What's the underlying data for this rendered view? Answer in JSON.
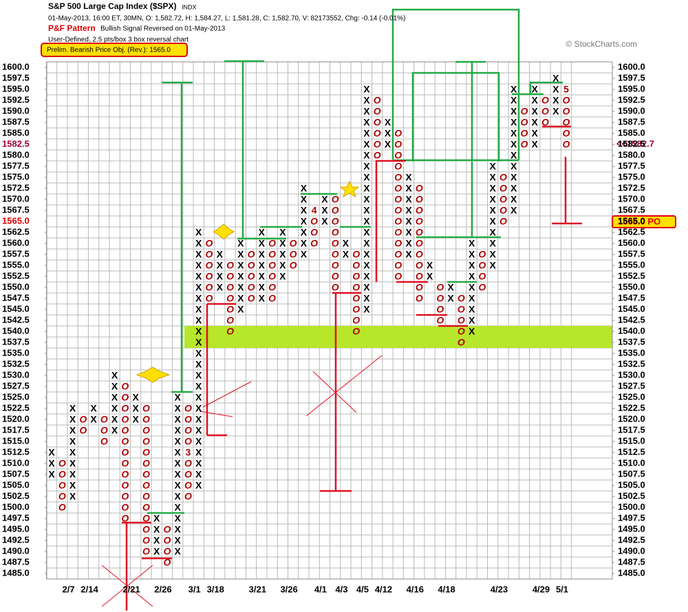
{
  "chart_data": {
    "type": "point_and_figure",
    "title": "S&P 500 Large Cap Index ($SPX)",
    "exchange": "INDX",
    "quote": "01-May-2013, 16:00 ET, 30MN, O: 1,582.72, H: 1,584.27, L: 1,581.28, C: 1,582.70, V: 82173552, Chg: -0.14 (-0.01%)",
    "pattern_label": "P&F Pattern",
    "pattern": "Bullish Signal Reversed on 01-May-2013",
    "settings_text": "User-Defined, 2.5 pts/box 3 box reversal chart",
    "price_objective_text": "Prelim. Bearish Price Obj. (Rev.): 1565.0",
    "copyright": "© StockCharts.com",
    "last_price_label": "<<1582.7",
    "po_label": "1565.0 PO",
    "x_color": "#000000",
    "o_color": "#b00000",
    "ylim": [
      1483.75,
      1601.25
    ],
    "yticks": [
      {
        "value": 1485,
        "label": "1485.0"
      },
      1487.5,
      {
        "value": 1490,
        "label": "1490.0"
      },
      1492.5,
      {
        "value": 1495,
        "label": "1495.0"
      },
      1497.5,
      {
        "value": 1500,
        "label": "1500.0"
      },
      1502.5,
      {
        "value": 1505,
        "label": "1505.0"
      },
      1507.5,
      {
        "value": 1510,
        "label": "1510.0"
      },
      1512.5,
      {
        "value": 1515,
        "label": "1515.0"
      },
      1517.5,
      {
        "value": 1520,
        "label": "1520.0"
      },
      1522.5,
      {
        "value": 1525,
        "label": "1525.0"
      },
      1527.5,
      {
        "value": 1530,
        "label": "1530.0"
      },
      1532.5,
      {
        "value": 1535,
        "label": "1535.0"
      },
      1537.5,
      {
        "value": 1540,
        "label": "1540.0"
      },
      1542.5,
      {
        "value": 1545,
        "label": "1545.0"
      },
      1547.5,
      {
        "value": 1550,
        "label": "1550.0"
      },
      1552.5,
      {
        "value": 1555,
        "label": "1555.0"
      },
      1557.5,
      {
        "value": 1560,
        "label": "1560.0"
      },
      1562.5,
      {
        "value": 1565,
        "label": "1565.0",
        "color": "#e00000"
      },
      1567.5,
      {
        "value": 1570,
        "label": "1570.0"
      },
      1572.5,
      {
        "value": 1575,
        "label": "1575.0"
      },
      1577.5,
      {
        "value": 1580,
        "label": "1580.0"
      },
      {
        "value": 1582.5,
        "label": "1582.5",
        "color": "#a0003c"
      },
      {
        "value": 1585,
        "label": "1585.0"
      },
      1587.5,
      {
        "value": 1590,
        "label": "1590.0"
      },
      1592.5,
      {
        "value": 1595,
        "label": "1595.0"
      },
      1597.5,
      {
        "value": 1600,
        "label": "1600.0"
      }
    ],
    "columns": [
      {
        "type": "X",
        "low": 1507.5,
        "high": 1512.5
      },
      {
        "type": "O",
        "low": 1500,
        "high": 1510
      },
      {
        "type": "X",
        "low": 1502.5,
        "high": 1522.5
      },
      {
        "type": "O",
        "low": 1517.5,
        "high": 1520
      },
      {
        "type": "X",
        "low": 1520,
        "high": 1522.5
      },
      {
        "type": "O",
        "low": 1515,
        "high": 1520
      },
      {
        "type": "X",
        "low": 1517.5,
        "high": 1530
      },
      {
        "type": "O",
        "low": 1497.5,
        "high": 1527.5
      },
      {
        "type": "X",
        "low": 1520,
        "high": 1525
      },
      {
        "type": "O",
        "low": 1490,
        "high": 1522.5
      },
      {
        "type": "X",
        "low": 1490,
        "high": 1497.5
      },
      {
        "type": "O",
        "low": 1487.5,
        "high": 1495
      },
      {
        "type": "X",
        "low": 1490,
        "high": 1525
      },
      {
        "type": "O",
        "low": 1502.5,
        "high": 1522.5,
        "marker": 3,
        "marker_price": 1512.5
      },
      {
        "type": "X",
        "low": 1505,
        "high": 1562.5
      },
      {
        "type": "O",
        "low": 1547.5,
        "high": 1560
      },
      {
        "type": "X",
        "low": 1550,
        "high": 1557.5
      },
      {
        "type": "O",
        "low": 1540,
        "high": 1555
      },
      {
        "type": "X",
        "low": 1545,
        "high": 1560
      },
      {
        "type": "O",
        "low": 1547.5,
        "high": 1557.5
      },
      {
        "type": "X",
        "low": 1547.5,
        "high": 1562.5
      },
      {
        "type": "O",
        "low": 1547.5,
        "high": 1560
      },
      {
        "type": "X",
        "low": 1552.5,
        "high": 1562.5
      },
      {
        "type": "O",
        "low": 1555,
        "high": 1560
      },
      {
        "type": "X",
        "low": 1557.5,
        "high": 1572.5
      },
      {
        "type": "O",
        "low": 1560,
        "high": 1567.5,
        "marker": 4,
        "marker_price": 1567.5
      },
      {
        "type": "X",
        "low": 1565,
        "high": 1570
      },
      {
        "type": "O",
        "low": 1550,
        "high": 1570
      },
      {
        "type": "X",
        "low": 1557.5,
        "high": 1560
      },
      {
        "type": "O",
        "low": 1540,
        "high": 1557.5
      },
      {
        "type": "X",
        "low": 1545,
        "high": 1595
      },
      {
        "type": "O",
        "low": 1580,
        "high": 1592.5
      },
      {
        "type": "X",
        "low": 1582.5,
        "high": 1587.5
      },
      {
        "type": "O",
        "low": 1552.5,
        "high": 1585
      },
      {
        "type": "X",
        "low": 1557.5,
        "high": 1575
      },
      {
        "type": "O",
        "low": 1547.5,
        "high": 1572.5
      },
      {
        "type": "X",
        "low": 1552.5,
        "high": 1555
      },
      {
        "type": "O",
        "low": 1542.5,
        "high": 1550
      },
      {
        "type": "X",
        "low": 1547.5,
        "high": 1550
      },
      {
        "type": "O",
        "low": 1537.5,
        "high": 1547.5
      },
      {
        "type": "X",
        "low": 1540,
        "high": 1560
      },
      {
        "type": "O",
        "low": 1550,
        "high": 1557.5
      },
      {
        "type": "X",
        "low": 1555,
        "high": 1577.5
      },
      {
        "type": "O",
        "low": 1565,
        "high": 1575
      },
      {
        "type": "X",
        "low": 1567.5,
        "high": 1595
      },
      {
        "type": "O",
        "low": 1582.5,
        "high": 1590
      },
      {
        "type": "X",
        "low": 1582.5,
        "high": 1595
      },
      {
        "type": "O",
        "low": 1587.5,
        "high": 1592.5
      },
      {
        "type": "X",
        "low": 1590,
        "high": 1597.5
      },
      {
        "type": "O",
        "low": 1582.5,
        "high": 1595,
        "marker": 5,
        "marker_price": 1595
      }
    ],
    "dates": [
      {
        "label": "2/7",
        "column": 2
      },
      {
        "label": "2/14",
        "column": 4
      },
      {
        "label": "2/21",
        "column": 8
      },
      {
        "label": "2/26",
        "column": 11
      },
      {
        "label": "3/1",
        "column": 14
      },
      {
        "label": "3/18",
        "column": 16
      },
      {
        "label": "3/21",
        "column": 20
      },
      {
        "label": "3/26",
        "column": 23
      },
      {
        "label": "4/1",
        "column": 26
      },
      {
        "label": "4/3",
        "column": 28
      },
      {
        "label": "4/5",
        "column": 30
      },
      {
        "label": "4/12",
        "column": 32
      },
      {
        "label": "4/16",
        "column": 35
      },
      {
        "label": "4/18",
        "column": 38
      },
      {
        "label": "4/23",
        "column": 43
      },
      {
        "label": "4/29",
        "column": 47
      },
      {
        "label": "5/1",
        "column": 49
      }
    ]
  }
}
